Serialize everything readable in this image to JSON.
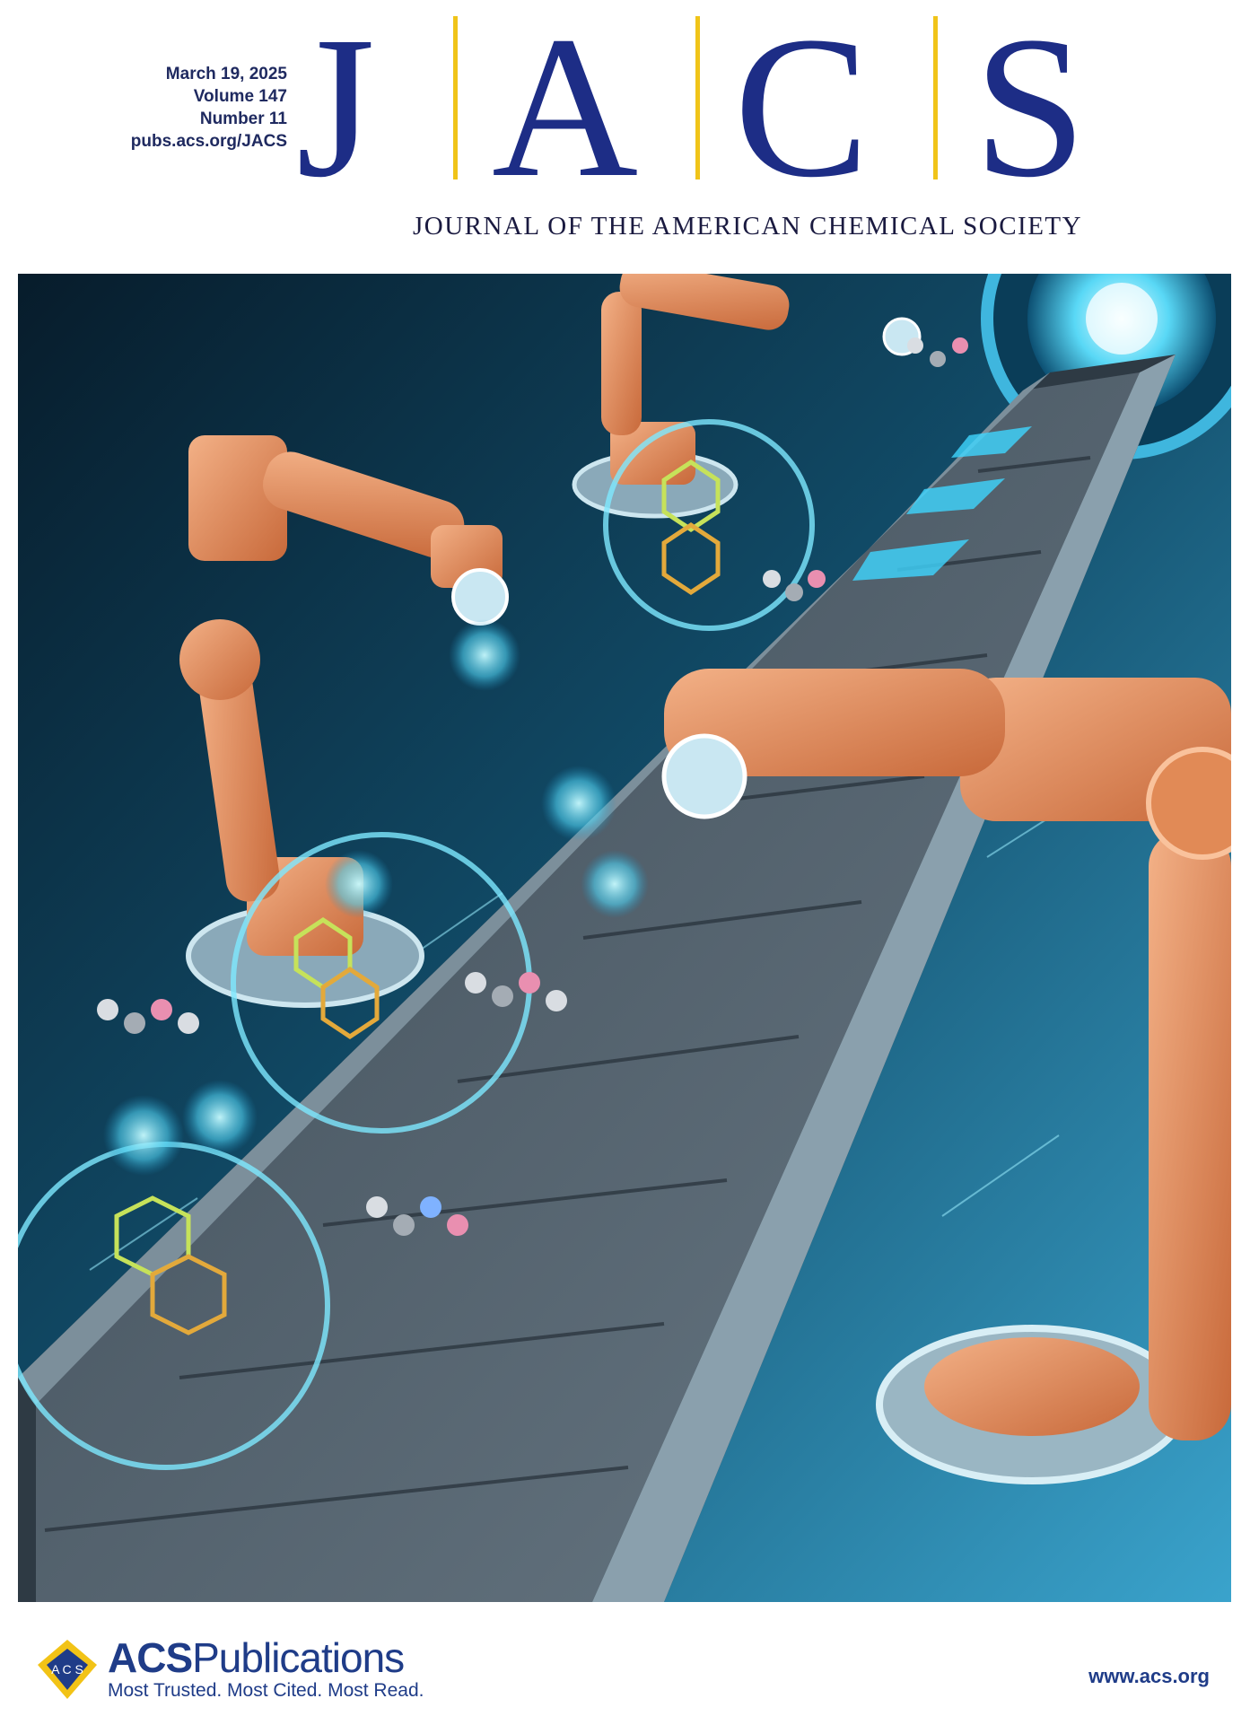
{
  "issue": {
    "date": "March 19, 2025",
    "volume": "Volume 147",
    "number": "Number 11",
    "url": "pubs.acs.org/JACS"
  },
  "masthead": {
    "letters": [
      "J",
      "A",
      "C",
      "S"
    ],
    "journal_name": "JOURNAL OF THE AMERICAN CHEMICAL SOCIETY",
    "letter_color": "#1d2d86",
    "divider_color": "#f0c419"
  },
  "cover_art": {
    "icon": "robot-assembly-line-molecules-illustration"
  },
  "footer": {
    "publisher_prefix": "ACS",
    "publisher_suffix": "Publications",
    "tagline": "Most Trusted. Most Cited. Most Read.",
    "website": "www.acs.org",
    "logo_icon": "acs-shield-logo-icon",
    "brand_color": "#1f3c88"
  }
}
